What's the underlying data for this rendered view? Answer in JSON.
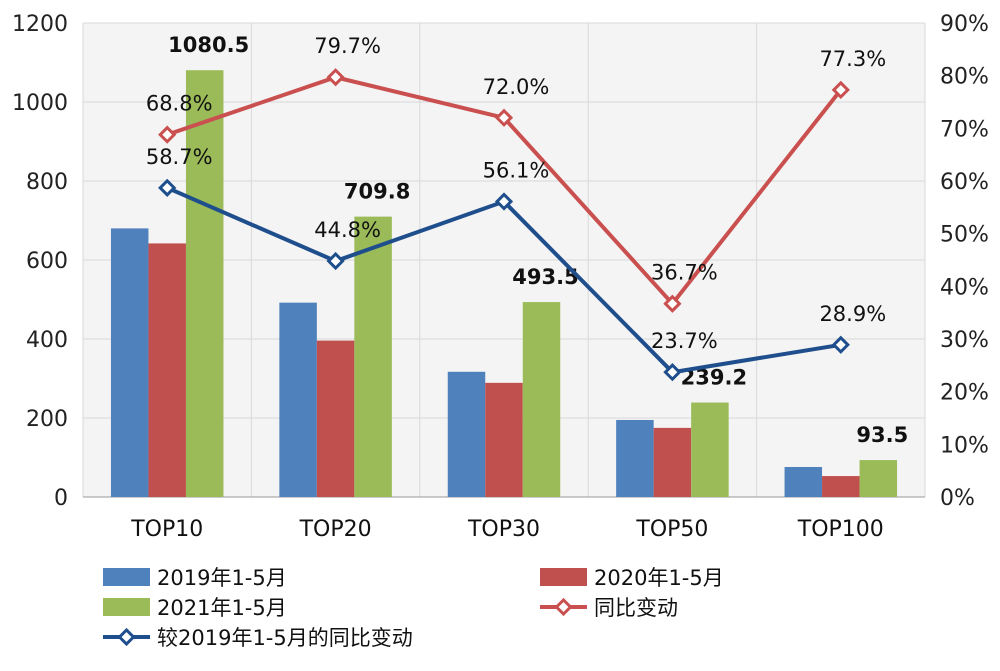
{
  "chart_data": {
    "type": "bar",
    "categories": [
      "TOP10",
      "TOP20",
      "TOP30",
      "TOP50",
      "TOP100"
    ],
    "ylim": [
      0,
      1200
    ],
    "yticks": [
      0,
      200,
      400,
      600,
      800,
      1000,
      1200
    ],
    "y2lim": [
      0,
      90
    ],
    "y2ticks": [
      "0%",
      "10%",
      "20%",
      "30%",
      "40%",
      "50%",
      "60%",
      "70%",
      "80%",
      "90%"
    ],
    "grid": true,
    "legend": "bottom",
    "bar_series": [
      {
        "name": "2019年1-5月",
        "color": "#4f81bd",
        "values": [
          680,
          492,
          317,
          195,
          76
        ],
        "labels": null
      },
      {
        "name": "2020年1-5月",
        "color": "#c0504d",
        "values": [
          642,
          396,
          289,
          175,
          53
        ],
        "labels": null
      },
      {
        "name": "2021年1-5月",
        "color": "#9bbb59",
        "values": [
          1080.5,
          709.8,
          493.5,
          239.2,
          93.5
        ],
        "labels": [
          "1080.5",
          "709.8",
          "493.5",
          "239.2",
          "93.5"
        ]
      }
    ],
    "line_series": [
      {
        "name": "同比变动",
        "color": "#c9504f",
        "axis": "right",
        "values": [
          68.8,
          79.7,
          72.0,
          36.7,
          77.3
        ],
        "labels": [
          "68.8%",
          "79.7%",
          "72.0%",
          "36.7%",
          "77.3%"
        ]
      },
      {
        "name": "较2019年1-5月的同比变动",
        "color": "#1f4e8c",
        "axis": "right",
        "values": [
          58.7,
          44.8,
          56.1,
          23.7,
          28.9
        ],
        "labels": [
          "58.7%",
          "44.8%",
          "56.1%",
          "23.7%",
          "28.9%"
        ]
      }
    ]
  }
}
